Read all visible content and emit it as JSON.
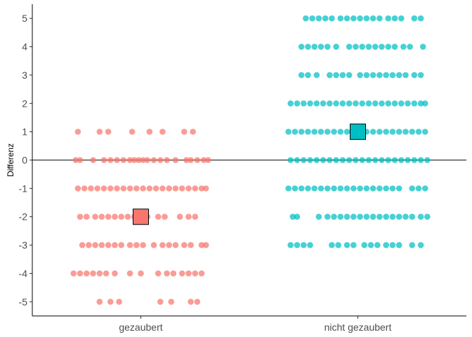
{
  "chart_data": {
    "type": "scatter",
    "subtype": "jittered strip plot with group means",
    "title": "",
    "xlabel": "",
    "ylabel": "Differenz",
    "ylim": [
      -5.5,
      5.5
    ],
    "yticks": [
      5,
      4,
      3,
      2,
      1,
      0,
      -1,
      -2,
      -3,
      -4,
      -5
    ],
    "ytick_labels": [
      "5",
      "4",
      "3",
      "2",
      "1",
      "0",
      "-1",
      "-2",
      "-3",
      "-4",
      "-5"
    ],
    "categories": [
      "gezaubert",
      "nicht gezaubert"
    ],
    "reference_line": 0,
    "grid": false,
    "legend": "none",
    "series": [
      {
        "category": "gezaubert",
        "color": "#F8766D",
        "mean": -2,
        "points": [
          {
            "y": 1,
            "x_offsets": [
              -0.29,
              -0.19,
              -0.15,
              -0.04,
              0.04,
              0.1,
              0.2,
              0.24
            ]
          },
          {
            "y": 0,
            "x_offsets": [
              -0.3,
              -0.28,
              -0.22,
              -0.17,
              -0.14,
              -0.11,
              -0.08,
              -0.05,
              -0.03,
              -0.01,
              0.01,
              0.03,
              0.06,
              0.09,
              0.12,
              0.16,
              0.21,
              0.23,
              0.26,
              0.29,
              0.31
            ]
          },
          {
            "y": -1,
            "x_offsets": [
              -0.29,
              -0.26,
              -0.23,
              -0.2,
              -0.17,
              -0.14,
              -0.11,
              -0.08,
              -0.05,
              -0.02,
              0.01,
              0.04,
              0.07,
              0.1,
              0.13,
              0.16,
              0.19,
              0.22,
              0.25,
              0.28,
              0.3
            ]
          },
          {
            "y": -2,
            "x_offsets": [
              -0.28,
              -0.25,
              -0.21,
              -0.18,
              -0.15,
              -0.12,
              -0.09,
              -0.06,
              -0.03,
              0.0,
              0.03,
              0.08,
              0.11,
              0.18,
              0.22,
              0.25
            ]
          },
          {
            "y": -3,
            "x_offsets": [
              -0.27,
              -0.24,
              -0.21,
              -0.18,
              -0.15,
              -0.12,
              -0.09,
              -0.05,
              -0.02,
              0.01,
              0.06,
              0.1,
              0.13,
              0.16,
              0.2,
              0.23,
              0.28,
              0.3
            ]
          },
          {
            "y": -4,
            "x_offsets": [
              -0.31,
              -0.28,
              -0.25,
              -0.22,
              -0.19,
              -0.16,
              -0.12,
              -0.05,
              0.0,
              0.08,
              0.12,
              0.15,
              0.19,
              0.22,
              0.25,
              0.28
            ]
          },
          {
            "y": -5,
            "x_offsets": [
              -0.19,
              -0.14,
              -0.1,
              0.09,
              0.14,
              0.23,
              0.26
            ]
          }
        ]
      },
      {
        "category": "nicht gezaubert",
        "color": "#00BFC4",
        "mean": 1,
        "points": [
          {
            "y": 5,
            "x_offsets": [
              -0.24,
              -0.21,
              -0.18,
              -0.15,
              -0.12,
              -0.08,
              -0.05,
              -0.02,
              0.01,
              0.04,
              0.07,
              0.1,
              0.14,
              0.17,
              0.2,
              0.26,
              0.29
            ]
          },
          {
            "y": 4,
            "x_offsets": [
              -0.26,
              -0.23,
              -0.2,
              -0.17,
              -0.14,
              -0.1,
              -0.04,
              -0.01,
              0.02,
              0.05,
              0.08,
              0.11,
              0.14,
              0.17,
              0.21,
              0.24,
              0.3
            ]
          },
          {
            "y": 3,
            "x_offsets": [
              -0.26,
              -0.23,
              -0.19,
              -0.13,
              -0.1,
              -0.07,
              -0.04,
              0.01,
              0.04,
              0.07,
              0.1,
              0.13,
              0.16,
              0.19,
              0.22,
              0.26,
              0.29
            ]
          },
          {
            "y": 2,
            "x_offsets": [
              -0.31,
              -0.28,
              -0.25,
              -0.22,
              -0.19,
              -0.16,
              -0.13,
              -0.1,
              -0.07,
              -0.04,
              -0.01,
              0.02,
              0.05,
              0.08,
              0.11,
              0.14,
              0.17,
              0.2,
              0.23,
              0.26,
              0.29,
              0.31
            ]
          },
          {
            "y": 1,
            "x_offsets": [
              -0.32,
              -0.29,
              -0.26,
              -0.23,
              -0.2,
              -0.17,
              -0.14,
              -0.11,
              -0.08,
              -0.05,
              -0.02,
              0.01,
              0.04,
              0.07,
              0.1,
              0.13,
              0.16,
              0.19,
              0.22,
              0.25,
              0.28,
              0.31
            ]
          },
          {
            "y": 0,
            "x_offsets": [
              -0.31,
              -0.28,
              -0.25,
              -0.22,
              -0.19,
              -0.16,
              -0.13,
              -0.1,
              -0.07,
              -0.04,
              -0.01,
              0.02,
              0.05,
              0.08,
              0.11,
              0.14,
              0.17,
              0.2,
              0.23,
              0.26,
              0.29,
              0.32
            ]
          },
          {
            "y": -1,
            "x_offsets": [
              -0.32,
              -0.29,
              -0.26,
              -0.23,
              -0.2,
              -0.17,
              -0.14,
              -0.11,
              -0.08,
              -0.05,
              -0.02,
              0.01,
              0.04,
              0.07,
              0.1,
              0.13,
              0.16,
              0.19,
              0.25,
              0.28,
              0.31
            ]
          },
          {
            "y": -2,
            "x_offsets": [
              -0.3,
              -0.28,
              -0.18,
              -0.14,
              -0.11,
              -0.08,
              -0.05,
              -0.02,
              0.01,
              0.04,
              0.07,
              0.1,
              0.13,
              0.16,
              0.19,
              0.22,
              0.25,
              0.29,
              0.32
            ]
          },
          {
            "y": -3,
            "x_offsets": [
              -0.31,
              -0.28,
              -0.25,
              -0.22,
              -0.12,
              -0.09,
              -0.05,
              -0.02,
              0.03,
              0.06,
              0.09,
              0.13,
              0.16,
              0.19,
              0.25,
              0.29
            ]
          }
        ]
      }
    ]
  }
}
